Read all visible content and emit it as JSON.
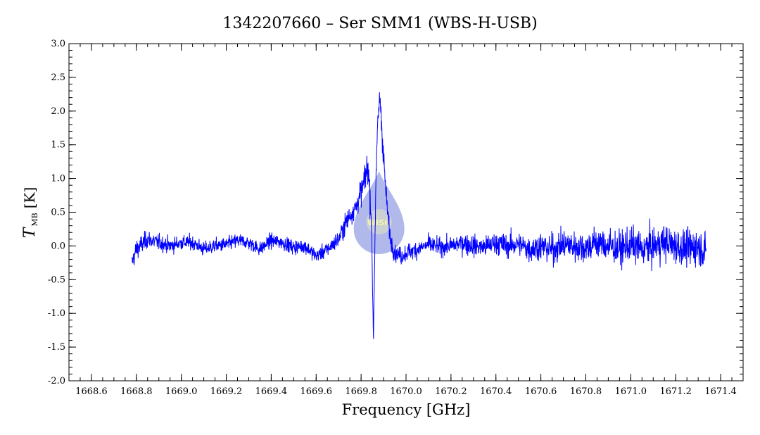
{
  "chart_data": {
    "type": "line",
    "title": "1342207660 – Ser SMM1 (WBS-H-USB)",
    "xlabel": "Frequency [GHz]",
    "ylabel": {
      "main": "T",
      "sub": "MB",
      "unit": "[K]"
    },
    "xlim": [
      1668.5,
      1671.5
    ],
    "ylim": [
      -2.0,
      3.0
    ],
    "x_ticks": [
      "1668.6",
      "1668.8",
      "1669.0",
      "1669.2",
      "1669.4",
      "1669.6",
      "1669.8",
      "1670.0",
      "1670.2",
      "1670.4",
      "1670.6",
      "1670.8",
      "1671.0",
      "1671.2",
      "1671.4"
    ],
    "y_ticks": [
      "-2.0",
      "-1.5",
      "-1.0",
      "-0.5",
      "0.0",
      "0.5",
      "1.0",
      "1.5",
      "2.0",
      "2.5",
      "3.0"
    ],
    "grid": false,
    "line_color": "#0000ff",
    "series": [
      {
        "x": [
          1668.78,
          1668.8,
          1668.85,
          1668.9,
          1668.95,
          1669.0,
          1669.05,
          1669.1,
          1669.15,
          1669.2,
          1669.25,
          1669.3,
          1669.35,
          1669.4,
          1669.45,
          1669.5,
          1669.55,
          1669.6,
          1669.65,
          1669.7,
          1669.74,
          1669.78,
          1669.81,
          1669.83,
          1669.845,
          1669.855,
          1669.865,
          1669.875,
          1669.885,
          1669.9,
          1669.915,
          1669.93,
          1669.95,
          1669.98,
          1670.0,
          1670.05,
          1670.1,
          1670.15,
          1670.2,
          1670.25,
          1670.3,
          1670.35,
          1670.4,
          1670.45,
          1670.5,
          1670.55,
          1670.6,
          1670.65,
          1670.7,
          1670.75,
          1670.8,
          1670.85,
          1670.9,
          1670.95,
          1671.0,
          1671.05,
          1671.1,
          1671.15,
          1671.2,
          1671.25,
          1671.3,
          1671.335
        ],
        "values": [
          -0.25,
          -0.05,
          0.1,
          0.05,
          0.0,
          0.05,
          0.05,
          -0.05,
          0.0,
          0.02,
          0.08,
          0.05,
          -0.05,
          0.08,
          0.05,
          -0.02,
          0.0,
          -0.15,
          -0.05,
          0.1,
          0.4,
          0.6,
          0.9,
          1.2,
          0.5,
          -1.35,
          0.8,
          1.9,
          2.2,
          1.3,
          0.6,
          0.1,
          -0.1,
          -0.15,
          -0.1,
          -0.05,
          0.02,
          -0.02,
          0.0,
          0.05,
          0.0,
          -0.02,
          0.05,
          0.0,
          0.03,
          -0.05,
          0.0,
          -0.05,
          0.02,
          0.0,
          -0.02,
          0.05,
          0.0,
          -0.05,
          0.02,
          -0.05,
          0.0,
          0.05,
          0.0,
          -0.05,
          0.0,
          -0.1
        ],
        "noise_rms": [
          0.12,
          0.15,
          0.12,
          0.11,
          0.11,
          0.1,
          0.1,
          0.1,
          0.1,
          0.1,
          0.1,
          0.1,
          0.1,
          0.1,
          0.1,
          0.1,
          0.1,
          0.1,
          0.1,
          0.12,
          0.15,
          0.15,
          0.2,
          0.25,
          0.2,
          0.1,
          0.2,
          0.2,
          0.2,
          0.2,
          0.15,
          0.12,
          0.12,
          0.12,
          0.12,
          0.12,
          0.12,
          0.12,
          0.12,
          0.14,
          0.15,
          0.15,
          0.16,
          0.16,
          0.17,
          0.18,
          0.2,
          0.2,
          0.21,
          0.22,
          0.22,
          0.22,
          0.23,
          0.23,
          0.24,
          0.24,
          0.25,
          0.25,
          0.25,
          0.25,
          0.25,
          0.25
        ]
      }
    ],
    "watermark_text": "WISH"
  }
}
